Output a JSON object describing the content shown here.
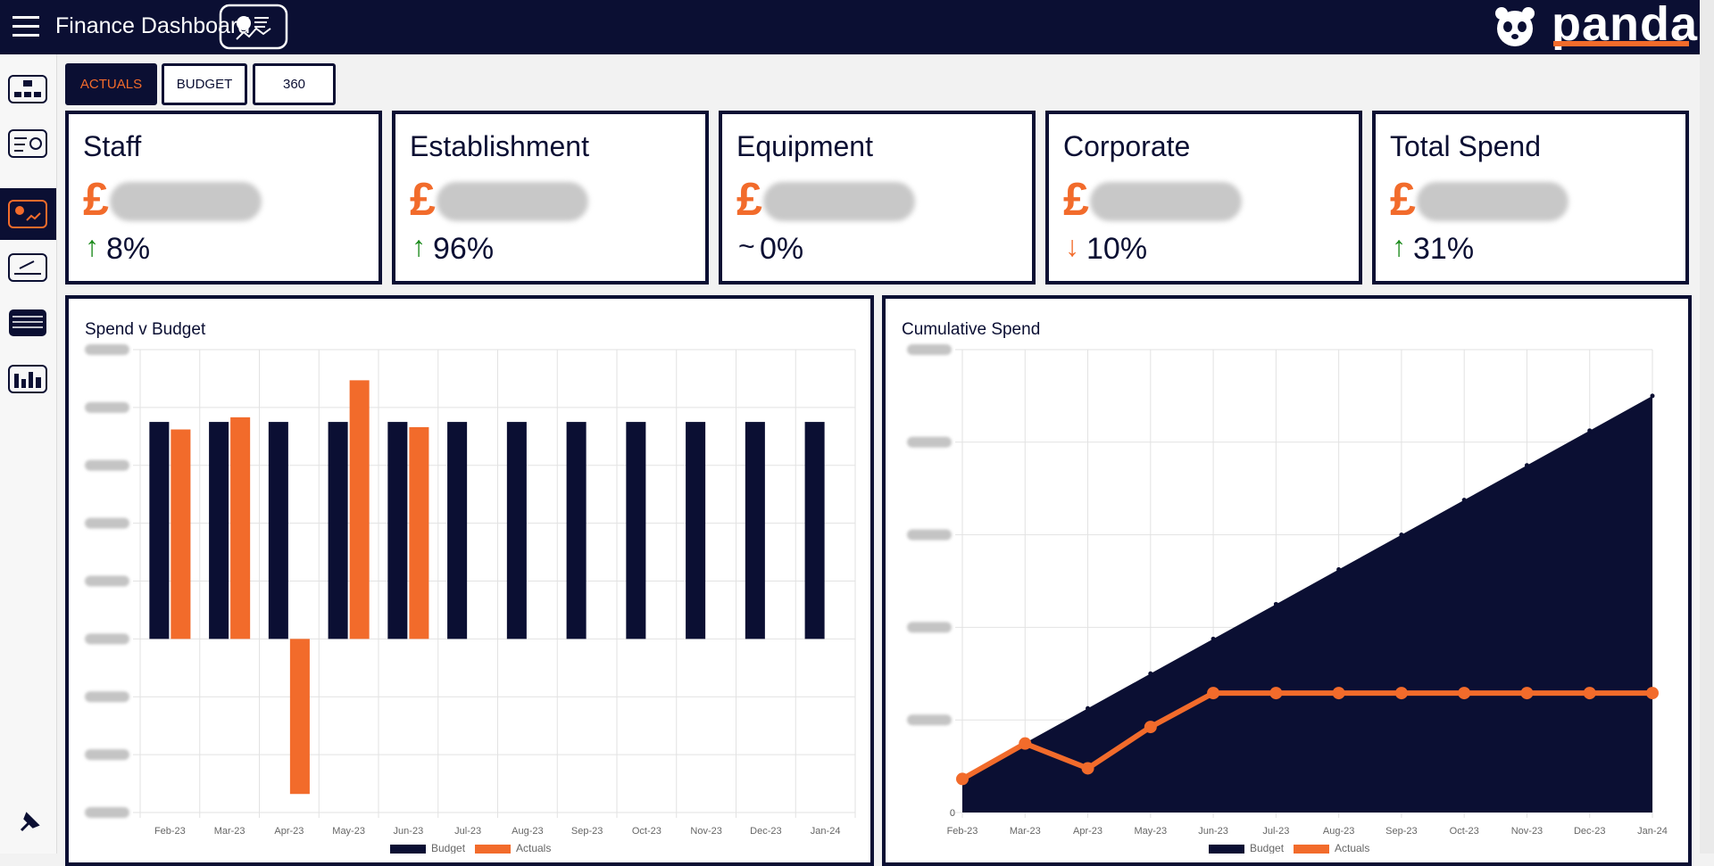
{
  "header": {
    "title": "Finance Dashboard",
    "brand": "panda"
  },
  "tabs": [
    "ACTUALS",
    "BUDGET",
    "360"
  ],
  "active_tab": 0,
  "cards": [
    {
      "title": "Staff",
      "currency": "£",
      "trend": "up",
      "change": "8%"
    },
    {
      "title": "Establishment",
      "currency": "£",
      "trend": "up",
      "change": "96%"
    },
    {
      "title": "Equipment",
      "currency": "£",
      "trend": "flat",
      "change": "0%"
    },
    {
      "title": "Corporate",
      "currency": "£",
      "trend": "down",
      "change": "10%"
    },
    {
      "title": "Total Spend",
      "currency": "£",
      "trend": "up",
      "change": "31%"
    }
  ],
  "chart_data": [
    {
      "type": "bar",
      "title": "Spend v Budget",
      "categories": [
        "Feb-23",
        "Mar-23",
        "Apr-23",
        "May-23",
        "Jun-23",
        "Jul-23",
        "Aug-23",
        "Sep-23",
        "Oct-23",
        "Nov-23",
        "Dec-23",
        "Jan-24"
      ],
      "series": [
        {
          "name": "Budget",
          "color": "#0b0f33",
          "values": [
            37.5,
            37.5,
            37.5,
            37.5,
            37.5,
            37.5,
            37.5,
            37.5,
            37.5,
            37.5,
            37.5,
            37.5
          ]
        },
        {
          "name": "Actuals",
          "color": "#f26b2b",
          "values": [
            36.2,
            38.3,
            -26.8,
            44.7,
            36.6,
            null,
            null,
            null,
            null,
            null,
            null,
            null
          ]
        }
      ],
      "ylim": [
        -30,
        50
      ],
      "yticks": [
        -30,
        -20,
        -10,
        0,
        10,
        20,
        30,
        40,
        50
      ],
      "grid": true
    },
    {
      "type": "line",
      "title": "Cumulative Spend",
      "categories": [
        "Feb-23",
        "Mar-23",
        "Apr-23",
        "May-23",
        "Jun-23",
        "Jul-23",
        "Aug-23",
        "Sep-23",
        "Oct-23",
        "Nov-23",
        "Dec-23",
        "Jan-24"
      ],
      "series": [
        {
          "name": "Budget",
          "color": "#0b0f33",
          "fill": true,
          "values": [
            37.5,
            75,
            112.5,
            150,
            187.5,
            225,
            262.5,
            300,
            337.5,
            375,
            412.5,
            450
          ]
        },
        {
          "name": "Actuals",
          "color": "#f26b2b",
          "fill": false,
          "values": [
            36.2,
            74.5,
            47.7,
            92.4,
            129,
            129,
            129,
            129,
            129,
            129,
            129,
            129
          ]
        }
      ],
      "ylim": [
        0,
        500
      ],
      "yticks": [
        0,
        100,
        200,
        300,
        400,
        500
      ],
      "grid": true
    }
  ]
}
